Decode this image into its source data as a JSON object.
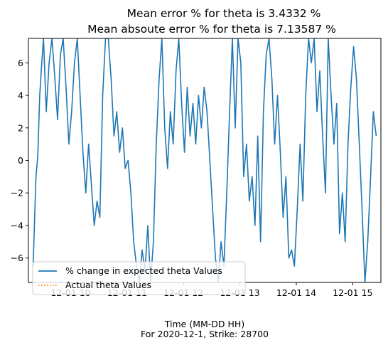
{
  "chart_data": {
    "type": "line",
    "title": "Mean error % for theta is 3.4332 %",
    "subtitle": "Mean absoute error % for theta is 7.13587 %",
    "xlabel": "Time (MM-DD HH)",
    "xlabel_sub": "For 2020-12-1, Strike: 28700",
    "ylabel": "",
    "xlim": [
      "2020-12-01 09:15",
      "2020-12-01 15:30"
    ],
    "ylim": [
      -7.5,
      7.5
    ],
    "xticks": [
      {
        "x": "2020-12-01 10:00",
        "label": "12-01 10"
      },
      {
        "x": "2020-12-01 11:00",
        "label": "12-01 11"
      },
      {
        "x": "2020-12-01 12:00",
        "label": "12-01 12"
      },
      {
        "x": "2020-12-01 13:00",
        "label": "12-01 13"
      },
      {
        "x": "2020-12-01 14:00",
        "label": "12-01 14"
      },
      {
        "x": "2020-12-01 15:00",
        "label": "12-01 15"
      }
    ],
    "yticks": [
      -6,
      -4,
      -2,
      0,
      2,
      4,
      6
    ],
    "grid": false,
    "legend_position": "lower-left",
    "series": [
      {
        "name": "% change in expected theta Values",
        "color": "#1f77b4",
        "style": "solid",
        "points": [
          [
            "2020-12-01 09:20",
            -6.5
          ],
          [
            "2020-12-01 09:23",
            -1.0
          ],
          [
            "2020-12-01 09:25",
            0.3
          ],
          [
            "2020-12-01 09:27",
            4.0
          ],
          [
            "2020-12-01 09:29",
            5.8
          ],
          [
            "2020-12-01 09:31",
            7.5
          ],
          [
            "2020-12-01 09:34",
            3.0
          ],
          [
            "2020-12-01 09:37",
            6.0
          ],
          [
            "2020-12-01 09:40",
            7.5
          ],
          [
            "2020-12-01 09:43",
            5.2
          ],
          [
            "2020-12-01 09:46",
            2.5
          ],
          [
            "2020-12-01 09:49",
            6.5
          ],
          [
            "2020-12-01 09:52",
            7.5
          ],
          [
            "2020-12-01 09:55",
            4.5
          ],
          [
            "2020-12-01 09:58",
            1.0
          ],
          [
            "2020-12-01 10:01",
            3.0
          ],
          [
            "2020-12-01 10:04",
            6.0
          ],
          [
            "2020-12-01 10:07",
            7.5
          ],
          [
            "2020-12-01 10:10",
            4.0
          ],
          [
            "2020-12-01 10:13",
            0.5
          ],
          [
            "2020-12-01 10:16",
            -2.0
          ],
          [
            "2020-12-01 10:19",
            1.0
          ],
          [
            "2020-12-01 10:22",
            -1.5
          ],
          [
            "2020-12-01 10:25",
            -4.0
          ],
          [
            "2020-12-01 10:28",
            -2.5
          ],
          [
            "2020-12-01 10:31",
            -3.5
          ],
          [
            "2020-12-01 10:34",
            4.0
          ],
          [
            "2020-12-01 10:37",
            7.5
          ],
          [
            "2020-12-01 10:40",
            7.5
          ],
          [
            "2020-12-01 10:43",
            5.0
          ],
          [
            "2020-12-01 10:46",
            1.5
          ],
          [
            "2020-12-01 10:49",
            3.0
          ],
          [
            "2020-12-01 10:52",
            0.5
          ],
          [
            "2020-12-01 10:55",
            2.0
          ],
          [
            "2020-12-01 10:58",
            -0.5
          ],
          [
            "2020-12-01 11:01",
            0.0
          ],
          [
            "2020-12-01 11:04",
            -2.0
          ],
          [
            "2020-12-01 11:07",
            -5.0
          ],
          [
            "2020-12-01 11:10",
            -6.5
          ],
          [
            "2020-12-01 11:13",
            -7.5
          ],
          [
            "2020-12-01 11:16",
            -5.5
          ],
          [
            "2020-12-01 11:19",
            -6.8
          ],
          [
            "2020-12-01 11:22",
            -4.0
          ],
          [
            "2020-12-01 11:25",
            -7.5
          ],
          [
            "2020-12-01 11:28",
            -5.0
          ],
          [
            "2020-12-01 11:31",
            1.0
          ],
          [
            "2020-12-01 11:34",
            5.0
          ],
          [
            "2020-12-01 11:37",
            7.5
          ],
          [
            "2020-12-01 11:40",
            2.0
          ],
          [
            "2020-12-01 11:43",
            -0.5
          ],
          [
            "2020-12-01 11:46",
            3.0
          ],
          [
            "2020-12-01 11:49",
            1.0
          ],
          [
            "2020-12-01 11:52",
            5.5
          ],
          [
            "2020-12-01 11:55",
            7.5
          ],
          [
            "2020-12-01 11:58",
            3.5
          ],
          [
            "2020-12-01 12:01",
            0.5
          ],
          [
            "2020-12-01 12:04",
            4.5
          ],
          [
            "2020-12-01 12:07",
            1.5
          ],
          [
            "2020-12-01 12:10",
            3.5
          ],
          [
            "2020-12-01 12:13",
            1.0
          ],
          [
            "2020-12-01 12:16",
            4.0
          ],
          [
            "2020-12-01 12:19",
            2.0
          ],
          [
            "2020-12-01 12:22",
            4.5
          ],
          [
            "2020-12-01 12:25",
            3.0
          ],
          [
            "2020-12-01 12:28",
            0.0
          ],
          [
            "2020-12-01 12:31",
            -3.0
          ],
          [
            "2020-12-01 12:34",
            -6.0
          ],
          [
            "2020-12-01 12:37",
            -7.5
          ],
          [
            "2020-12-01 12:40",
            -5.0
          ],
          [
            "2020-12-01 12:43",
            -6.5
          ],
          [
            "2020-12-01 12:46",
            -2.0
          ],
          [
            "2020-12-01 12:49",
            3.0
          ],
          [
            "2020-12-01 12:52",
            7.5
          ],
          [
            "2020-12-01 12:55",
            2.0
          ],
          [
            "2020-12-01 12:58",
            7.5
          ],
          [
            "2020-12-01 13:01",
            6.0
          ],
          [
            "2020-12-01 13:04",
            -1.0
          ],
          [
            "2020-12-01 13:07",
            1.0
          ],
          [
            "2020-12-01 13:10",
            -2.5
          ],
          [
            "2020-12-01 13:13",
            -1.0
          ],
          [
            "2020-12-01 13:16",
            -4.0
          ],
          [
            "2020-12-01 13:19",
            1.5
          ],
          [
            "2020-12-01 13:22",
            -5.0
          ],
          [
            "2020-12-01 13:25",
            3.0
          ],
          [
            "2020-12-01 13:28",
            6.5
          ],
          [
            "2020-12-01 13:31",
            7.5
          ],
          [
            "2020-12-01 13:34",
            5.0
          ],
          [
            "2020-12-01 13:37",
            1.0
          ],
          [
            "2020-12-01 13:40",
            4.0
          ],
          [
            "2020-12-01 13:43",
            0.5
          ],
          [
            "2020-12-01 13:46",
            -3.5
          ],
          [
            "2020-12-01 13:49",
            -1.0
          ],
          [
            "2020-12-01 13:52",
            -6.0
          ],
          [
            "2020-12-01 13:55",
            -5.5
          ],
          [
            "2020-12-01 13:58",
            -6.5
          ],
          [
            "2020-12-01 14:01",
            -3.0
          ],
          [
            "2020-12-01 14:04",
            1.0
          ],
          [
            "2020-12-01 14:07",
            -2.5
          ],
          [
            "2020-12-01 14:10",
            4.0
          ],
          [
            "2020-12-01 14:13",
            7.5
          ],
          [
            "2020-12-01 14:16",
            6.0
          ],
          [
            "2020-12-01 14:19",
            7.5
          ],
          [
            "2020-12-01 14:22",
            3.0
          ],
          [
            "2020-12-01 14:25",
            5.5
          ],
          [
            "2020-12-01 14:28",
            1.5
          ],
          [
            "2020-12-01 14:31",
            -2.0
          ],
          [
            "2020-12-01 14:34",
            7.5
          ],
          [
            "2020-12-01 14:37",
            4.0
          ],
          [
            "2020-12-01 14:40",
            1.0
          ],
          [
            "2020-12-01 14:43",
            3.5
          ],
          [
            "2020-12-01 14:46",
            -4.5
          ],
          [
            "2020-12-01 14:49",
            -2.0
          ],
          [
            "2020-12-01 14:52",
            -5.0
          ],
          [
            "2020-12-01 14:55",
            1.0
          ],
          [
            "2020-12-01 14:58",
            4.5
          ],
          [
            "2020-12-01 15:01",
            7.0
          ],
          [
            "2020-12-01 15:04",
            5.0
          ],
          [
            "2020-12-01 15:07",
            1.0
          ],
          [
            "2020-12-01 15:10",
            -3.0
          ],
          [
            "2020-12-01 15:13",
            -7.5
          ],
          [
            "2020-12-01 15:16",
            -5.0
          ],
          [
            "2020-12-01 15:19",
            -1.0
          ],
          [
            "2020-12-01 15:22",
            3.0
          ],
          [
            "2020-12-01 15:25",
            1.5
          ]
        ]
      },
      {
        "name": "Actual theta Values",
        "color": "#ff7f0e",
        "style": "dotted",
        "points": []
      }
    ]
  }
}
